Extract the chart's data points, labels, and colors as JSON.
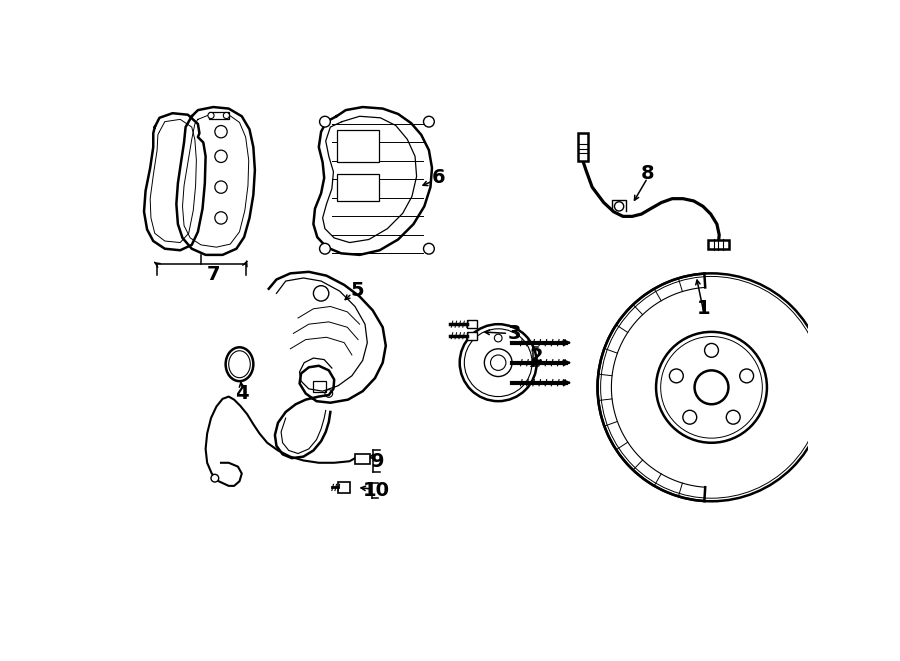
{
  "bg_color": "#ffffff",
  "line_color": "#000000",
  "lw": 1.3,
  "lw_thick": 1.8,
  "fig_width": 9.0,
  "fig_height": 6.61
}
